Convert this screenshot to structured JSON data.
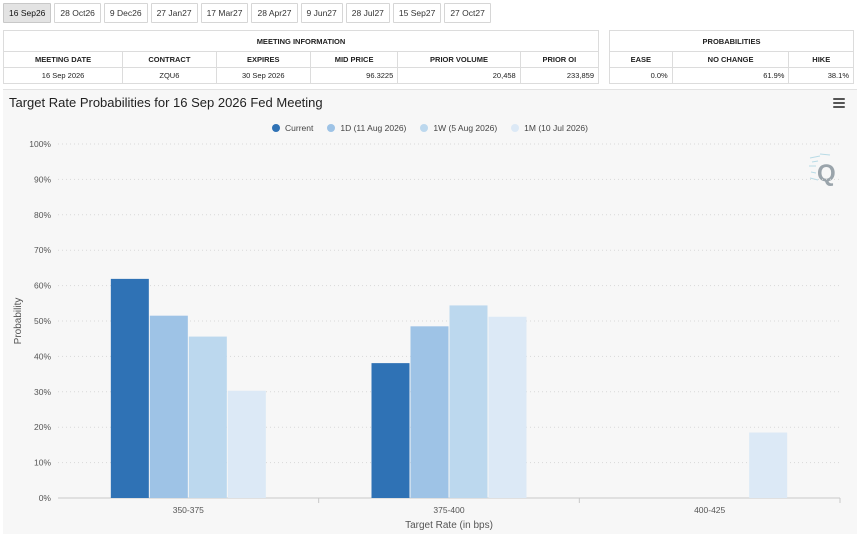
{
  "tabs": [
    "16 Sep26",
    "28 Oct26",
    "9 Dec26",
    "27 Jan27",
    "17 Mar27",
    "28 Apr27",
    "9 Jun27",
    "28 Jul27",
    "15 Sep27",
    "27 Oct27"
  ],
  "active_tab": 0,
  "meeting_info": {
    "group_title": "MEETING INFORMATION",
    "headers": [
      "MEETING DATE",
      "CONTRACT",
      "EXPIRES",
      "MID PRICE",
      "PRIOR VOLUME",
      "PRIOR OI"
    ],
    "row": [
      "16 Sep 2026",
      "ZQU6",
      "30 Sep 2026",
      "96.3225",
      "20,458",
      "233,859"
    ]
  },
  "probabilities": {
    "group_title": "PROBABILITIES",
    "headers": [
      "EASE",
      "NO CHANGE",
      "HIKE"
    ],
    "row": [
      "0.0%",
      "61.9%",
      "38.1%"
    ]
  },
  "colors": {
    "current": "#2f72b5",
    "d1": "#9ec3e6",
    "w1": "#bcd8ee",
    "m1": "#dce9f6"
  },
  "chart_data": {
    "type": "bar",
    "title": "Target Rate Probabilities for 16 Sep 2026 Fed Meeting",
    "xlabel": "Target Rate (in bps)",
    "ylabel": "Probability",
    "categories": [
      "350-375",
      "375-400",
      "400-425"
    ],
    "ylim": [
      0,
      100
    ],
    "yticks": [
      "0%",
      "10%",
      "20%",
      "30%",
      "40%",
      "50%",
      "60%",
      "70%",
      "80%",
      "90%",
      "100%"
    ],
    "grid": true,
    "legend_position": "top-center",
    "series": [
      {
        "name": "Current",
        "values": [
          61.9,
          38.1,
          0
        ]
      },
      {
        "name": "1D (11 Aug 2026)",
        "values": [
          51.5,
          48.5,
          0
        ]
      },
      {
        "name": "1W (5 Aug 2026)",
        "values": [
          45.6,
          54.4,
          0
        ]
      },
      {
        "name": "1M (10 Jul 2026)",
        "values": [
          30.3,
          51.2,
          18.5
        ]
      }
    ]
  }
}
